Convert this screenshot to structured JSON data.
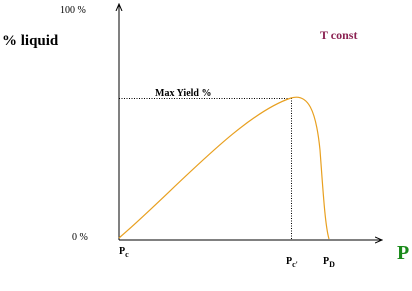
{
  "axis": {
    "y_top": "100 %",
    "y_bottom": "0 %",
    "y_title": "% liquid",
    "x_title": "P"
  },
  "annotations": {
    "condition": "T const",
    "max_yield": "Max Yield %"
  },
  "x_points": [
    {
      "base": "P",
      "sub": "c"
    },
    {
      "base": "P",
      "sub": "c'"
    },
    {
      "base": "P",
      "sub": "D"
    }
  ]
}
